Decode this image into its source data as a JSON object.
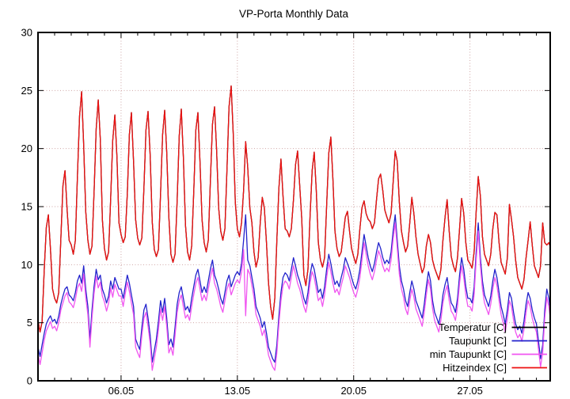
{
  "chart_data": {
    "type": "line",
    "title": "VP-Porta Monthly Data",
    "xlabel": "",
    "ylabel": "",
    "grid": true,
    "legend_position": "bottom-right-inside",
    "x_axis": {
      "start_date": "01.05",
      "range_days": [
        0,
        30.83
      ],
      "tick_labels": [
        "06.05",
        "13.05",
        "20.05",
        "27.05"
      ],
      "tick_days": [
        5,
        12,
        19,
        26
      ],
      "minor_tick_every_days": 1
    },
    "y_axis": {
      "range": [
        0,
        30
      ],
      "ticks": [
        0,
        5,
        10,
        15,
        20,
        25,
        30
      ],
      "tick_labels": [
        "0",
        "5",
        "10",
        "15",
        "20",
        "25",
        "30"
      ]
    },
    "sample_step_days": 0.125,
    "sample_times_per_day": [
      "00h",
      "03h",
      "06h",
      "09h",
      "12h",
      "15h",
      "18h",
      "21h"
    ],
    "series": [
      {
        "name": "Temperatur [C]",
        "color": "#000000",
        "values_same_as": "Hitzeindex [C]"
      },
      {
        "name": "Taupunkt [C]",
        "color": "#2222cc",
        "values_per_day": [
          [
            2.9,
            2.1,
            3.1,
            4.1,
            4.9,
            5.3,
            5.6,
            5.1
          ],
          [
            5.3,
            4.9,
            5.6,
            6.6,
            7.3,
            7.9,
            8.1,
            7.4
          ],
          [
            7.2,
            6.9,
            7.6,
            8.6,
            9.1,
            8.4,
            9.9,
            7.9
          ],
          [
            6.4,
            3.6,
            6.1,
            8.1,
            9.6,
            8.7,
            9.1,
            7.9
          ],
          [
            7.4,
            6.7,
            7.3,
            8.6,
            7.9,
            8.9,
            8.4,
            7.9
          ],
          [
            7.9,
            7.1,
            8.1,
            9.1,
            8.4,
            7.4,
            6.4,
            3.6
          ],
          [
            3.1,
            2.7,
            4.6,
            6.1,
            6.6,
            5.4,
            3.9,
            1.6
          ],
          [
            2.6,
            3.6,
            5.1,
            6.9,
            5.9,
            7.1,
            5.4,
            3.1
          ],
          [
            3.6,
            2.9,
            4.6,
            6.6,
            7.6,
            8.1,
            7.1,
            6.1
          ],
          [
            6.4,
            5.9,
            7.1,
            8.1,
            9.1,
            9.6,
            8.6,
            7.6
          ],
          [
            8.1,
            7.6,
            8.6,
            9.6,
            10.4,
            9.1,
            8.6,
            7.9
          ],
          [
            7.1,
            6.6,
            7.6,
            8.6,
            9.1,
            8.1,
            8.6,
            9.1
          ],
          [
            9.4,
            9.1,
            10.1,
            12.1,
            14.3,
            10.4,
            9.9,
            8.9
          ],
          [
            7.9,
            6.4,
            5.9,
            5.4,
            4.6,
            5.1,
            4.1,
            2.9
          ],
          [
            2.4,
            1.9,
            1.6,
            3.1,
            5.6,
            7.6,
            8.9,
            9.3
          ],
          [
            9.1,
            8.6,
            9.6,
            10.6,
            9.9,
            9.1,
            8.6,
            7.9
          ],
          [
            7.1,
            6.6,
            7.6,
            9.1,
            10.1,
            9.6,
            8.6,
            7.6
          ],
          [
            7.9,
            7.1,
            8.1,
            9.6,
            10.9,
            10.1,
            9.1,
            8.3
          ],
          [
            8.6,
            8.1,
            8.9,
            9.6,
            10.6,
            10.1,
            9.6,
            8.9
          ],
          [
            8.3,
            7.9,
            8.6,
            9.6,
            11.1,
            12.6,
            11.6,
            10.6
          ],
          [
            9.9,
            9.4,
            10.1,
            11.1,
            11.9,
            11.4,
            10.6,
            10.1
          ],
          [
            10.4,
            10.1,
            11.1,
            12.9,
            14.3,
            12.1,
            9.9,
            8.6
          ],
          [
            7.9,
            6.9,
            6.4,
            7.6,
            8.6,
            7.9,
            6.9,
            6.4
          ],
          [
            5.9,
            5.4,
            6.6,
            8.1,
            9.4,
            8.6,
            6.9,
            5.9
          ],
          [
            5.4,
            4.9,
            5.9,
            7.4,
            8.3,
            8.9,
            7.6,
            6.7
          ],
          [
            6.4,
            5.9,
            7.1,
            9.1,
            10.6,
            9.6,
            8.1,
            7.1
          ],
          [
            7.1,
            6.7,
            8.1,
            11.1,
            13.6,
            10.6,
            8.6,
            7.4
          ],
          [
            6.9,
            6.4,
            7.3,
            8.6,
            9.6,
            8.9,
            7.6,
            6.4
          ],
          [
            5.7,
            4.9,
            6.1,
            7.6,
            7.1,
            5.9,
            4.9,
            4.4
          ],
          [
            4.7,
            4.1,
            5.1,
            6.6,
            7.6,
            7.1,
            6.1,
            5.4
          ],
          [
            4.9,
            3.4,
            1.9,
            3.1,
            6.1,
            7.9,
            7.1,
            5.6
          ]
        ]
      },
      {
        "name": "min Taupunkt [C]",
        "color": "#f055f0",
        "values_per_day": [
          [
            2.3,
            1.4,
            2.4,
            3.5,
            4.3,
            4.7,
            5.1,
            4.5
          ],
          [
            4.7,
            4.3,
            5.0,
            6.1,
            6.7,
            7.3,
            7.6,
            6.8
          ],
          [
            6.6,
            6.3,
            7.0,
            8.0,
            8.4,
            7.7,
            9.2,
            7.2
          ],
          [
            5.7,
            2.9,
            5.4,
            7.5,
            9.0,
            8.0,
            8.5,
            7.3
          ],
          [
            6.8,
            6.0,
            6.7,
            8.0,
            7.2,
            8.3,
            7.8,
            7.3
          ],
          [
            7.3,
            6.4,
            7.5,
            8.5,
            7.7,
            6.7,
            5.7,
            2.9
          ],
          [
            2.4,
            2.0,
            3.9,
            5.4,
            5.9,
            4.7,
            3.2,
            0.9
          ],
          [
            1.9,
            2.9,
            4.4,
            6.2,
            5.2,
            6.4,
            4.7,
            2.4
          ],
          [
            2.9,
            2.2,
            3.9,
            5.9,
            6.9,
            7.4,
            6.4,
            5.4
          ],
          [
            5.7,
            5.2,
            6.4,
            7.4,
            8.4,
            8.9,
            7.9,
            6.9
          ],
          [
            7.4,
            6.9,
            7.9,
            8.9,
            9.7,
            8.4,
            7.9,
            7.2
          ],
          [
            6.4,
            5.9,
            6.9,
            7.9,
            8.4,
            7.4,
            7.9,
            8.4
          ],
          [
            8.7,
            8.4,
            9.4,
            11.3,
            5.6,
            9.6,
            9.2,
            8.2
          ],
          [
            7.2,
            5.7,
            5.2,
            4.7,
            3.9,
            4.4,
            3.4,
            2.2
          ],
          [
            1.7,
            1.2,
            0.9,
            2.4,
            4.9,
            6.9,
            8.2,
            8.6
          ],
          [
            8.4,
            7.9,
            8.9,
            9.9,
            9.2,
            8.4,
            7.9,
            7.2
          ],
          [
            6.4,
            5.9,
            6.9,
            8.4,
            9.4,
            8.9,
            7.9,
            6.9
          ],
          [
            7.2,
            6.4,
            7.4,
            8.9,
            10.2,
            9.4,
            8.4,
            7.6
          ],
          [
            7.9,
            7.4,
            8.2,
            8.9,
            9.9,
            9.4,
            8.9,
            8.2
          ],
          [
            7.6,
            7.2,
            7.9,
            8.9,
            10.4,
            11.9,
            10.9,
            9.9
          ],
          [
            9.2,
            8.7,
            9.4,
            10.4,
            11.2,
            10.7,
            9.9,
            9.4
          ],
          [
            9.7,
            9.4,
            10.4,
            12.2,
            13.6,
            11.4,
            9.2,
            7.9
          ],
          [
            7.2,
            6.2,
            5.7,
            6.9,
            7.9,
            7.2,
            6.2,
            5.7
          ],
          [
            5.2,
            4.7,
            5.9,
            7.4,
            8.7,
            7.9,
            6.2,
            5.2
          ],
          [
            4.7,
            4.2,
            5.2,
            6.7,
            7.6,
            8.2,
            6.9,
            6.0
          ],
          [
            5.7,
            5.2,
            6.4,
            8.4,
            9.9,
            8.9,
            7.4,
            6.4
          ],
          [
            6.4,
            6.0,
            7.4,
            10.4,
            12.9,
            9.9,
            7.9,
            6.7
          ],
          [
            6.2,
            5.7,
            6.6,
            7.9,
            8.9,
            8.2,
            6.9,
            5.7
          ],
          [
            5.0,
            4.2,
            5.4,
            6.9,
            6.4,
            5.2,
            4.2,
            3.7
          ],
          [
            4.0,
            3.4,
            4.4,
            5.9,
            6.9,
            6.4,
            5.4,
            4.7
          ],
          [
            4.2,
            2.7,
            1.2,
            2.4,
            5.4,
            7.2,
            6.4,
            4.9
          ]
        ]
      },
      {
        "name": "Hitzeindex [C]",
        "color": "#ee1111",
        "values_per_day": [
          [
            5.2,
            4.2,
            5.1,
            9.6,
            13.2,
            14.3,
            11.4,
            7.9
          ],
          [
            7.1,
            6.7,
            7.6,
            12.3,
            16.8,
            18.1,
            14.8,
            12.1
          ],
          [
            11.7,
            10.9,
            12.1,
            17.6,
            22.8,
            24.9,
            20.3,
            14.6
          ],
          [
            12.1,
            10.9,
            11.6,
            16.2,
            21.7,
            24.2,
            20.8,
            13.9
          ],
          [
            11.4,
            10.4,
            11.1,
            15.7,
            20.7,
            22.9,
            19.3,
            13.6
          ],
          [
            12.6,
            11.9,
            12.4,
            16.1,
            21.2,
            23.1,
            18.9,
            13.9
          ],
          [
            12.3,
            11.7,
            12.3,
            16.6,
            21.6,
            23.2,
            19.4,
            13.7
          ],
          [
            11.3,
            10.7,
            11.3,
            16.1,
            21.2,
            23.3,
            19.7,
            14.1
          ],
          [
            10.9,
            10.2,
            10.9,
            15.6,
            21.1,
            23.4,
            19.3,
            13.4
          ],
          [
            11.1,
            10.4,
            11.6,
            16.2,
            21.6,
            23.1,
            18.9,
            13.9
          ],
          [
            11.9,
            11.1,
            12.1,
            17.1,
            22.1,
            23.6,
            19.9,
            14.9
          ],
          [
            12.9,
            12.1,
            13.1,
            18.2,
            23.6,
            25.4,
            21.3,
            15.4
          ],
          [
            13.1,
            12.4,
            13.6,
            16.4,
            20.6,
            18.4,
            14.9,
            13.6
          ],
          [
            11.1,
            9.8,
            10.6,
            13.6,
            15.8,
            14.9,
            11.9,
            8.4
          ],
          [
            6.4,
            5.3,
            7.1,
            12.1,
            16.6,
            19.1,
            15.9,
            13.1
          ],
          [
            12.9,
            12.4,
            13.1,
            15.6,
            18.6,
            19.8,
            16.9,
            13.9
          ],
          [
            9.1,
            8.2,
            9.6,
            14.1,
            18.1,
            19.7,
            16.4,
            11.9
          ],
          [
            10.4,
            9.8,
            10.6,
            15.1,
            19.6,
            21.0,
            17.4,
            12.9
          ],
          [
            11.4,
            10.7,
            11.1,
            12.6,
            14.1,
            14.6,
            12.9,
            11.4
          ],
          [
            10.7,
            10.1,
            10.9,
            13.1,
            14.9,
            15.5,
            14.4,
            13.9
          ],
          [
            13.7,
            13.1,
            13.6,
            15.6,
            17.4,
            17.8,
            16.4,
            14.7
          ],
          [
            14.1,
            13.6,
            14.4,
            17.1,
            19.8,
            18.9,
            15.4,
            12.9
          ],
          [
            11.9,
            11.1,
            11.6,
            13.6,
            15.8,
            14.4,
            12.4,
            10.9
          ],
          [
            10.1,
            9.3,
            9.8,
            11.6,
            12.6,
            11.9,
            10.4,
            9.7
          ],
          [
            9.2,
            8.7,
            9.6,
            12.1,
            14.1,
            15.6,
            12.9,
            10.7
          ],
          [
            9.9,
            9.4,
            10.6,
            13.1,
            15.7,
            14.4,
            11.9,
            10.4
          ],
          [
            10.1,
            9.7,
            11.1,
            14.6,
            17.6,
            15.9,
            12.4,
            10.9
          ],
          [
            10.4,
            9.9,
            10.9,
            13.1,
            14.5,
            14.3,
            11.9,
            10.2
          ],
          [
            9.7,
            9.2,
            10.6,
            15.2,
            13.9,
            12.4,
            10.4,
            8.9
          ],
          [
            8.4,
            7.9,
            8.7,
            10.6,
            12.1,
            13.7,
            11.7,
            9.9
          ],
          [
            9.4,
            8.9,
            9.9,
            13.6,
            11.9,
            11.7,
            11.9,
            11.4
          ]
        ]
      }
    ]
  },
  "colors": {
    "background": "#ffffff",
    "border": "#000000",
    "grid": "#cfa5a5",
    "text": "#000000"
  }
}
